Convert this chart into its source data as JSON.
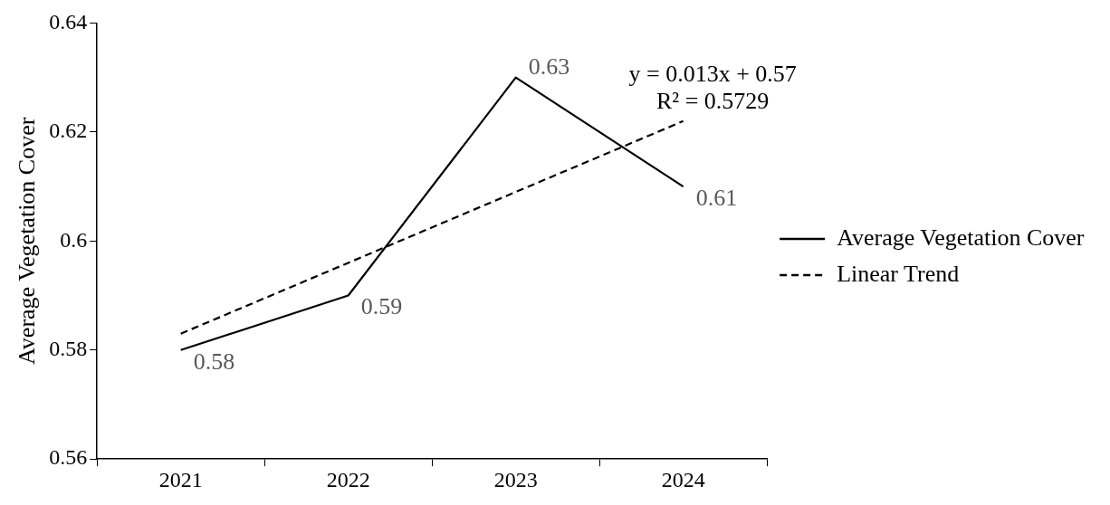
{
  "chart_data": {
    "type": "line",
    "ylabel": "Average Vegetation Cover",
    "categories": [
      "2021",
      "2022",
      "2023",
      "2024"
    ],
    "series": [
      {
        "name": "Average Vegetation Cover",
        "color": "#000000",
        "values": [
          0.58,
          0.59,
          0.63,
          0.61
        ],
        "value_labels": [
          "0.58",
          "0.59",
          "0.63",
          "0.61"
        ],
        "line_style": "solid"
      },
      {
        "name": "Linear Trend",
        "type": "line",
        "color": "#000000",
        "values": [
          0.583,
          0.596,
          0.609,
          0.622
        ],
        "line_style": "dashed"
      }
    ],
    "ylim": [
      0.56,
      0.64
    ],
    "yticks": [
      0.56,
      0.58,
      0.6,
      0.62,
      0.64
    ],
    "grid": false,
    "legend": "right",
    "marker": "none",
    "annotations": [
      "y = 0.013x + 0.57",
      "R² = 0.5729"
    ]
  }
}
